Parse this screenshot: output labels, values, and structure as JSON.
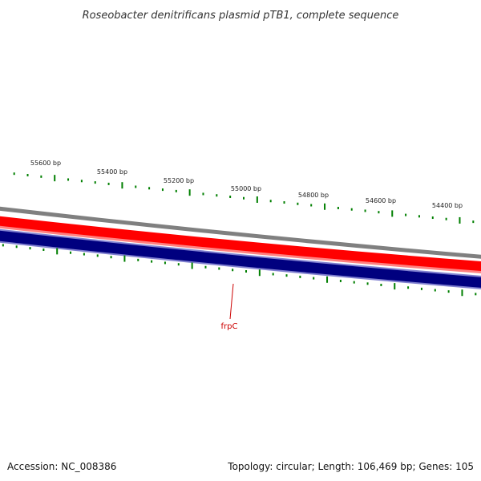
{
  "title": "Roseobacter denitrificans plasmid pTB1, complete sequence",
  "footer": {
    "accession": "Accession: NC_008386",
    "summary": "Topology: circular; Length: 106,469 bp; Genes: 105"
  },
  "colors": {
    "outer_ring": "#808080",
    "plus_strand": "#ff0000",
    "plus_strand_light": "#ff8080",
    "minus_strand": "#00007f",
    "minus_strand_edge": "#7f7fcf",
    "ticks": "#007f00",
    "gene_label": "#cc0000"
  },
  "tick_labels": [
    {
      "text": "55600 bp",
      "bp": 55600
    },
    {
      "text": "55400 bp",
      "bp": 55400
    },
    {
      "text": "55200 bp",
      "bp": 55200
    },
    {
      "text": "55000 bp",
      "bp": 55000
    },
    {
      "text": "54800 bp",
      "bp": 54800
    },
    {
      "text": "54600 bp",
      "bp": 54600
    },
    {
      "text": "54400 bp",
      "bp": 54400
    }
  ],
  "genes": [
    {
      "name": "frpC",
      "strand": "minus"
    }
  ]
}
